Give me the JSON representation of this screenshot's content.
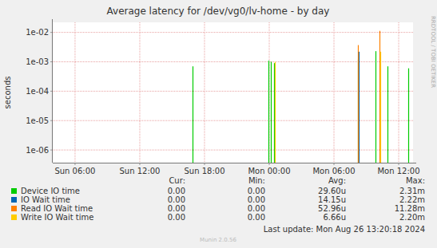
{
  "chart_data": {
    "type": "bar",
    "title": "Average latency for /dev/vg0/lv-home - by day",
    "y_label": "seconds",
    "log": "y",
    "grid": true,
    "x": [
      16.89,
      23.93,
      24.15,
      24.44,
      24.5,
      32.22,
      32.3,
      33.85,
      34.22,
      34.3,
      34.96,
      36.89
    ],
    "xlim": [
      3.93,
      37.33
    ],
    "xticks": [
      {
        "value": 6,
        "label": "Sun 06:00"
      },
      {
        "value": 12,
        "label": "Sun 12:00"
      },
      {
        "value": 18,
        "label": "Sun 18:00"
      },
      {
        "value": 24,
        "label": "Mon 00:00"
      },
      {
        "value": 30,
        "label": "Mon 06:00"
      },
      {
        "value": 36,
        "label": "Mon 12:00"
      }
    ],
    "ylim": [
      3.7e-07,
      0.022
    ],
    "yticks": [
      {
        "value": 1e-06,
        "label": "1e-06"
      },
      {
        "value": 1e-05,
        "label": "1e-05"
      },
      {
        "value": 0.0001,
        "label": "1e-04"
      },
      {
        "value": 0.001,
        "label": "1e-03"
      },
      {
        "value": 0.01,
        "label": "1e-02"
      }
    ],
    "series": [
      {
        "name": "Device IO time",
        "color": "#00cc00",
        "values": [
          0.0007,
          0.0011,
          0.001,
          0.0009,
          null,
          0.0012,
          null,
          0.0023,
          null,
          null,
          0.0007,
          0.0006
        ]
      },
      {
        "name": "IO Wait time",
        "color": "#0066b3",
        "values": [
          null,
          null,
          null,
          null,
          null,
          null,
          0.0022,
          null,
          null,
          null,
          null,
          null
        ]
      },
      {
        "name": "Read IO Wait time",
        "color": "#ff8000",
        "values": [
          null,
          null,
          null,
          null,
          null,
          0.0037,
          null,
          null,
          0.0113,
          null,
          null,
          null
        ]
      },
      {
        "name": "Write IO Wait time",
        "color": "#ffcc00",
        "values": [
          null,
          null,
          null,
          null,
          0.001,
          null,
          null,
          null,
          null,
          0.0022,
          null,
          null
        ]
      }
    ]
  },
  "legend_table": {
    "columns": [
      "Cur:",
      "Min:",
      "Avg:",
      "Max:"
    ],
    "rows": [
      [
        "0.00",
        "0.00",
        "29.60u",
        "2.31m"
      ],
      [
        "0.00",
        "0.00",
        "14.15u",
        "2.22m"
      ],
      [
        "0.00",
        "0.00",
        "52.96u",
        "11.28m"
      ],
      [
        "0.00",
        "0.00",
        "6.66u",
        "2.20m"
      ]
    ]
  },
  "last_update": "Last update: Mon Aug 26 13:20:18 2024",
  "footer": "Munin 2.0.56",
  "side_text": "RRDTOOL / TOBI OETIKER"
}
